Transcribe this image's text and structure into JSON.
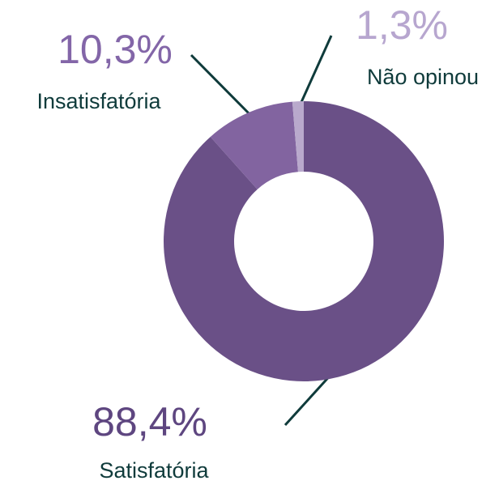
{
  "chart_data": {
    "type": "donut",
    "categories": [
      "Satisfatória",
      "Insatisfatória",
      "Não opinou"
    ],
    "values": [
      88.4,
      10.3,
      1.3
    ],
    "value_labels": [
      "88,4%",
      "10,3%",
      "1,3%"
    ],
    "colors": [
      "#6a5087",
      "#8264a0",
      "#b9a9cc"
    ],
    "label_colors": [
      "#5e4680",
      "#8366a8",
      "#b7a6cf"
    ]
  }
}
